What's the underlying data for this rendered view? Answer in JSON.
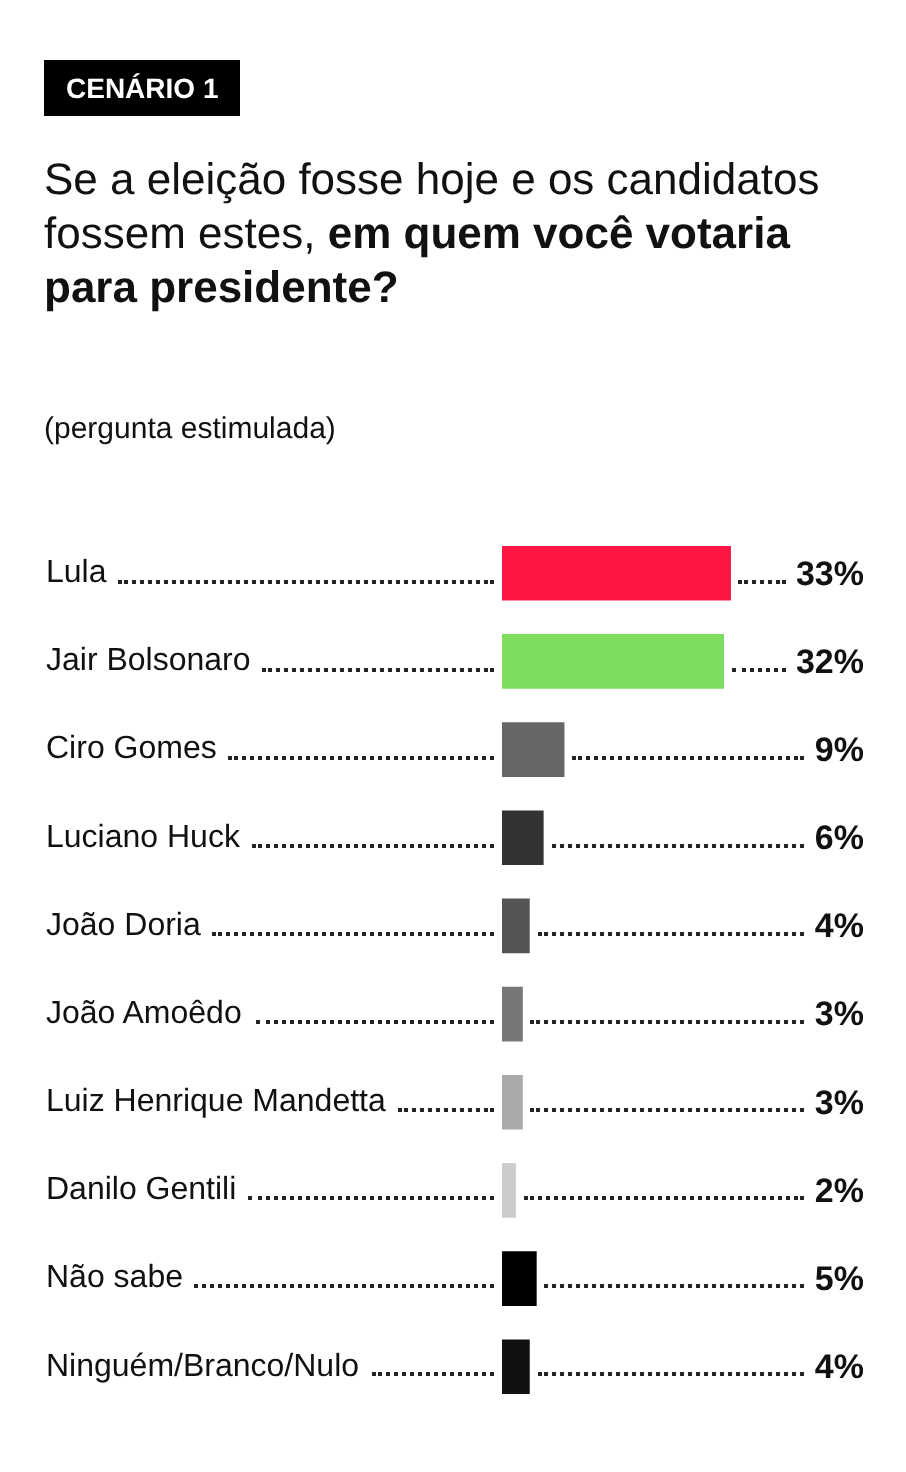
{
  "chart_data": {
    "type": "bar",
    "orientation": "horizontal",
    "title": "Se a eleição fosse hoje e os candidatos fossem estes,",
    "subtitle": "em quem você votaria para presidente?",
    "annotations": [
      "CENÁRIO 1",
      "(pergunta estimulada)"
    ],
    "categories": [
      "Lula",
      "Jair Bolsonaro",
      "Ciro Gomes",
      "Luciano Huck",
      "João Doria",
      "João Amoêdo",
      "Luiz Henrique Mandetta",
      "Danilo Gentili",
      "Não sabe",
      "Ninguém/Branco/Nulo"
    ],
    "values": [
      33,
      32,
      9,
      6,
      4,
      3,
      3,
      2,
      5,
      4
    ],
    "value_labels": [
      "33%",
      "32%",
      "9%",
      "6%",
      "4%",
      "3%",
      "3%",
      "2%",
      "5%",
      "4%"
    ],
    "colors": [
      "#ff1744",
      "#7ddd5f",
      "#666666",
      "#333333",
      "#555555",
      "#777777",
      "#aaaaaa",
      "#cccccc",
      "#000000",
      "#111111"
    ],
    "grid": false,
    "legend": false
  }
}
